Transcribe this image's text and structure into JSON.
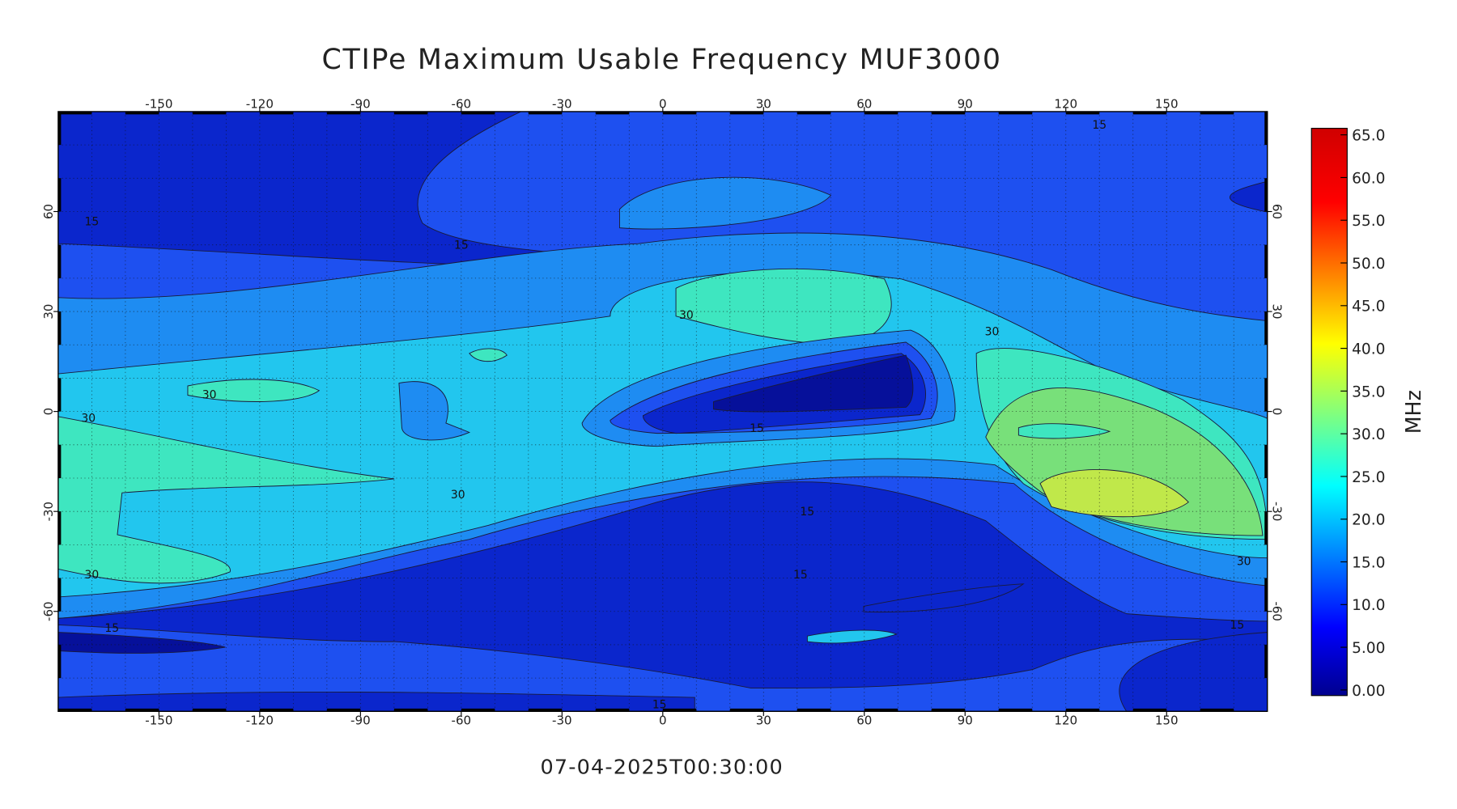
{
  "title": "CTIPe Maximum Usable Frequency MUF3000",
  "timestamp": "07-04-2025T00:30:00",
  "map": {
    "xlim": [
      -180,
      180
    ],
    "ylim": [
      -90,
      90
    ],
    "xticks": [
      -150,
      -120,
      -90,
      -60,
      -30,
      0,
      30,
      60,
      90,
      120,
      150
    ],
    "yticks": [
      -60,
      -30,
      0,
      30,
      60
    ],
    "contour_labels": [
      {
        "value": 15,
        "lon": 130,
        "lat": 86
      },
      {
        "value": 15,
        "lon": -170,
        "lat": 57
      },
      {
        "value": 15,
        "lon": -60,
        "lat": 50
      },
      {
        "value": 30,
        "lon": 7,
        "lat": 29
      },
      {
        "value": 30,
        "lon": 98,
        "lat": 24
      },
      {
        "value": 30,
        "lon": -135,
        "lat": 5
      },
      {
        "value": 30,
        "lon": -171,
        "lat": -2
      },
      {
        "value": 15,
        "lon": 28,
        "lat": -5
      },
      {
        "value": 30,
        "lon": -61,
        "lat": -25
      },
      {
        "value": 15,
        "lon": 43,
        "lat": -30
      },
      {
        "value": 30,
        "lon": -170,
        "lat": -49
      },
      {
        "value": 15,
        "lon": 41,
        "lat": -49
      },
      {
        "value": 30,
        "lon": 173,
        "lat": -45
      },
      {
        "value": 15,
        "lon": -164,
        "lat": -65
      },
      {
        "value": 15,
        "lon": 171,
        "lat": -64
      },
      {
        "value": 15,
        "lon": -1,
        "lat": -88
      }
    ]
  },
  "colorbar": {
    "label": "MHz",
    "lim": [
      0,
      65
    ],
    "ticks": [
      {
        "value": 0,
        "label": "0.00"
      },
      {
        "value": 5,
        "label": "5.00"
      },
      {
        "value": 10,
        "label": "10.0"
      },
      {
        "value": 15,
        "label": "15.0"
      },
      {
        "value": 20,
        "label": "20.0"
      },
      {
        "value": 25,
        "label": "25.0"
      },
      {
        "value": 30,
        "label": "30.0"
      },
      {
        "value": 35,
        "label": "35.0"
      },
      {
        "value": 40,
        "label": "40.0"
      },
      {
        "value": 45,
        "label": "45.0"
      },
      {
        "value": 50,
        "label": "50.0"
      },
      {
        "value": 55,
        "label": "55.0"
      },
      {
        "value": 60,
        "label": "60.0"
      },
      {
        "value": 65,
        "label": "65.0"
      }
    ]
  }
}
